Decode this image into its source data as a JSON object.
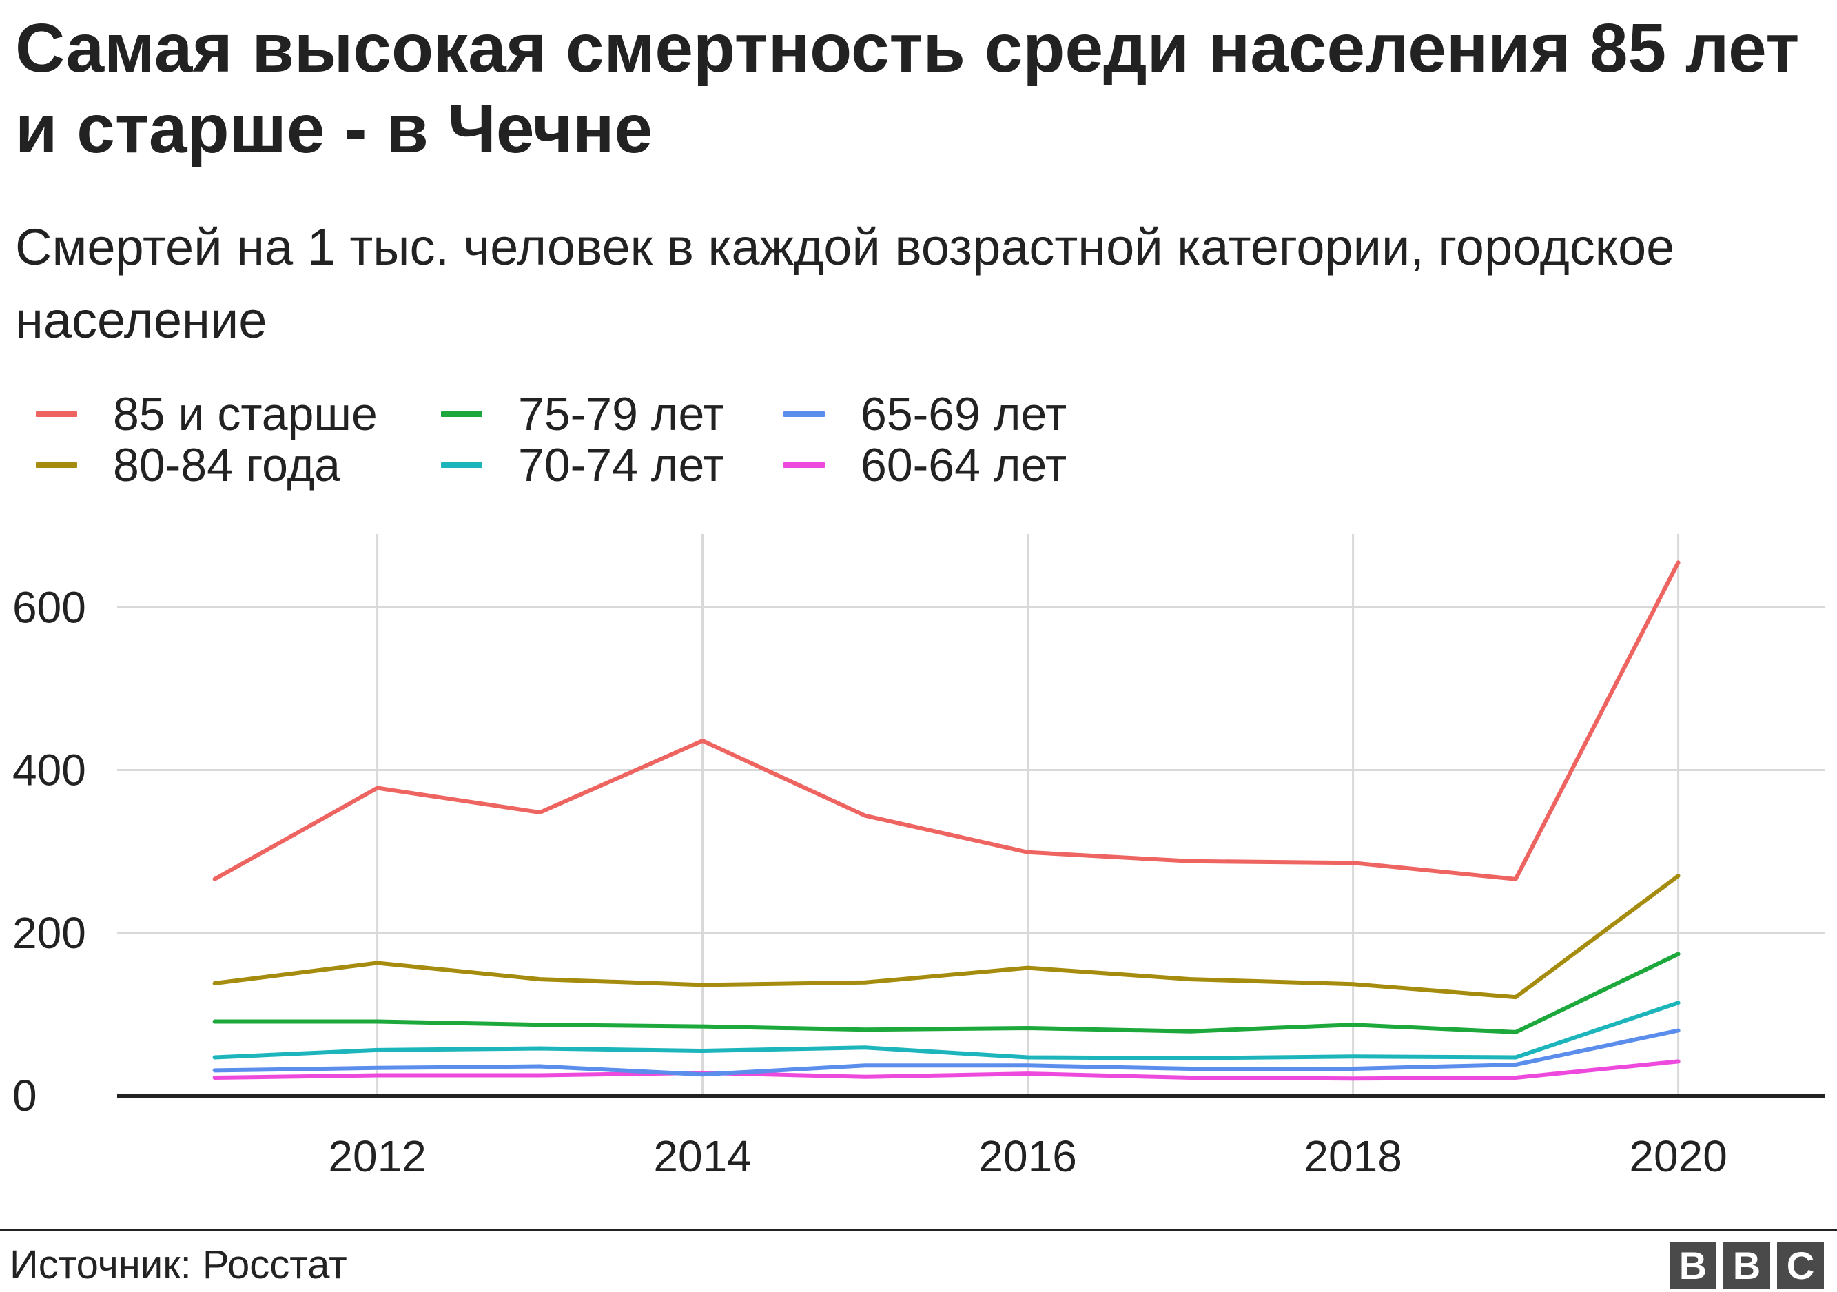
{
  "title": "Самая высокая смертность среди населения 85 лет и старше - в Чечне",
  "subtitle": "Смертей на 1 тыс. человек в каждой возрастной категории, городское население",
  "source": "Источник: Росстат",
  "logo_letters": [
    "B",
    "B",
    "C"
  ],
  "chart_data": {
    "type": "line",
    "title": "Самая высокая смертность среди населения 85 лет и старше - в Чечне",
    "subtitle": "Смертей на 1 тыс. человек в каждой возрастной категории, городское население",
    "xlabel": "",
    "ylabel": "",
    "x": [
      2011,
      2012,
      2013,
      2014,
      2015,
      2016,
      2017,
      2018,
      2019,
      2020
    ],
    "xlim": [
      2010.4,
      2020.9
    ],
    "ylim": [
      0,
      690
    ],
    "xticks": [
      2012,
      2014,
      2016,
      2018,
      2020
    ],
    "yticks": [
      0,
      200,
      400,
      600
    ],
    "grid": true,
    "legend_position": "top-left",
    "series": [
      {
        "name": "85 и старше",
        "color": "#ee6461",
        "values": [
          266,
          378,
          348,
          436,
          344,
          299,
          288,
          286,
          266,
          655
        ]
      },
      {
        "name": "80-84 года",
        "color": "#a58c0e",
        "values": [
          138,
          163,
          143,
          136,
          139,
          157,
          143,
          137,
          121,
          270
        ]
      },
      {
        "name": "75-79 лет",
        "color": "#1ca83b",
        "values": [
          91,
          91,
          87,
          85,
          81,
          83,
          79,
          87,
          78,
          174
        ]
      },
      {
        "name": "70-74 лет",
        "color": "#1db5bc",
        "values": [
          47,
          56,
          58,
          55,
          59,
          47,
          46,
          48,
          47,
          114
        ]
      },
      {
        "name": "65-69 лет",
        "color": "#5b8ded",
        "values": [
          31,
          34,
          36,
          26,
          37,
          37,
          33,
          33,
          38,
          80
        ]
      },
      {
        "name": "60-64 лет",
        "color": "#ee49dd",
        "values": [
          22,
          25,
          25,
          28,
          23,
          27,
          22,
          21,
          22,
          42
        ]
      }
    ]
  }
}
